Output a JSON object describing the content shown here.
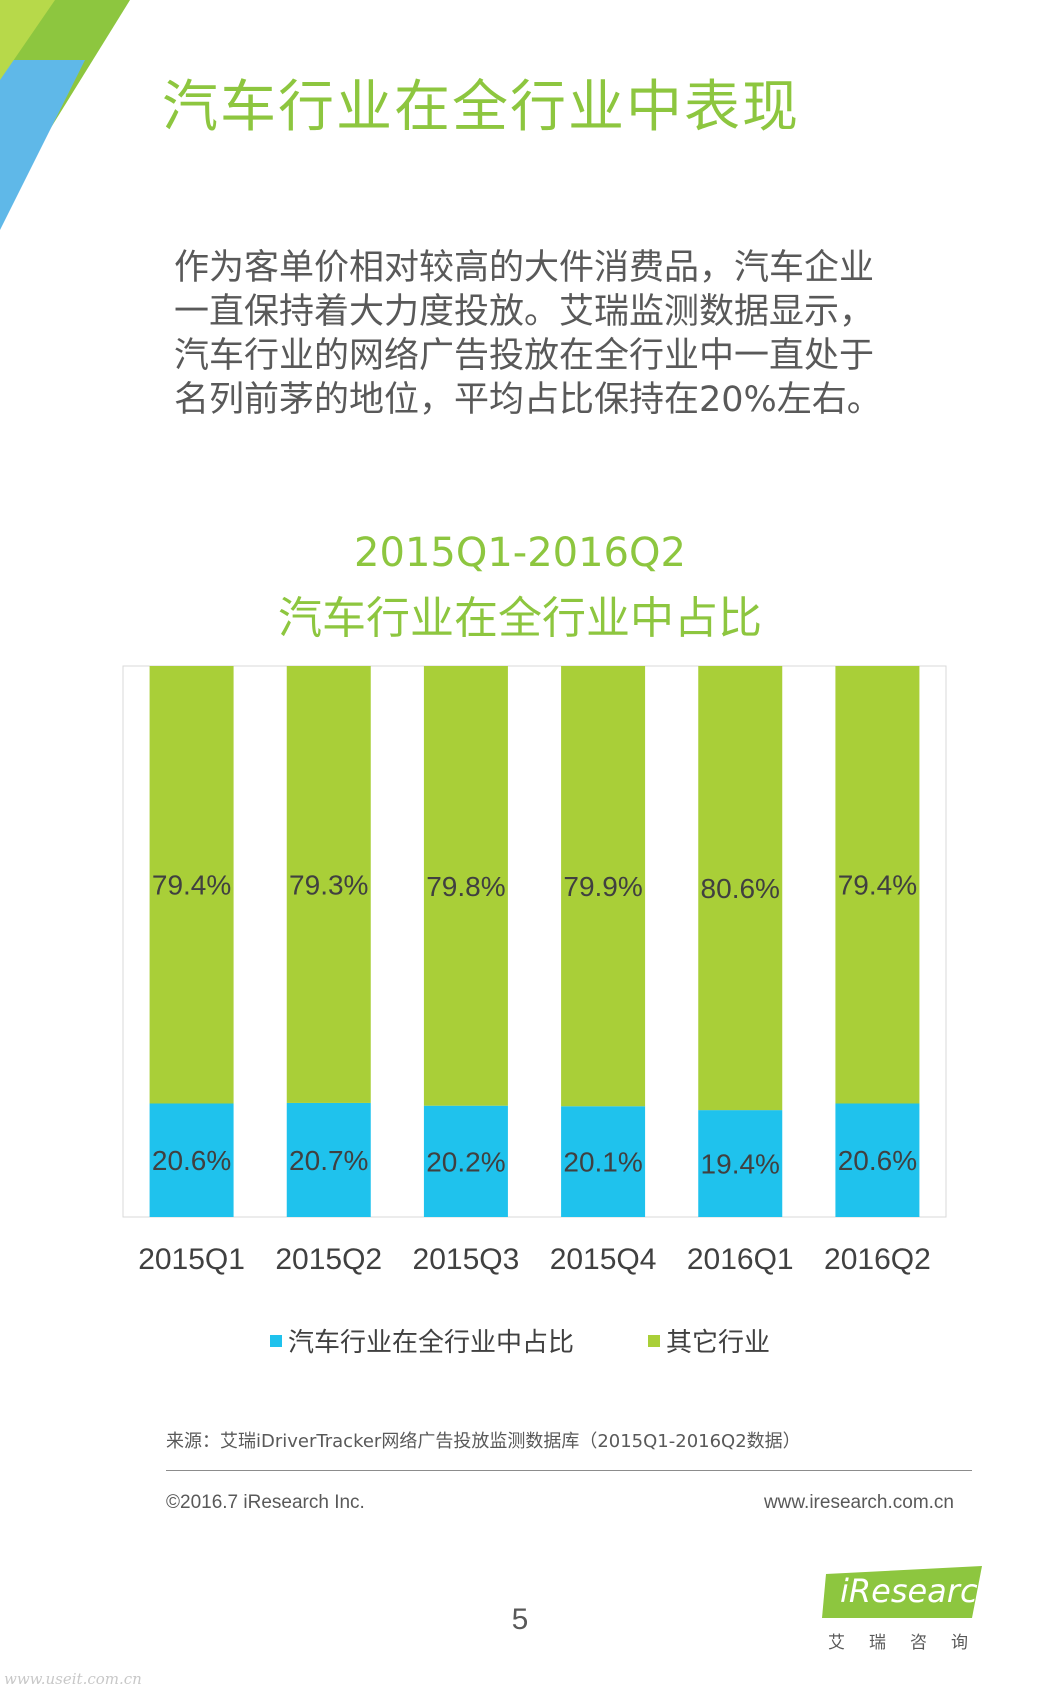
{
  "page": {
    "title": "汽车行业在全行业中表现",
    "intro": "作为客单价相对较高的大件消费品，汽车企业一直保持着大力度投放。艾瑞监测数据显示，汽车行业的网络广告投放在全行业中一直处于名列前茅的地位，平均占比保持在20%左右。",
    "page_number": "5",
    "source": "来源：艾瑞iDriverTracker网络广告投放监测数据库（2015Q1-2016Q2数据）",
    "copyright": "©2016.7 iResearch Inc.",
    "website": "www.iresearch.com.cn",
    "logo": {
      "text": "iResearch",
      "sub": "艾瑞咨询"
    },
    "watermark": "www.useit.com.cn"
  },
  "colors": {
    "accent": "#8dc63f",
    "auto": "#1fc2ed",
    "other": "#a9cf38",
    "text": "#595959"
  },
  "chart_data": {
    "type": "bar",
    "stacked": true,
    "title_line1": "2015Q1-2016Q2",
    "title_line2": "汽车行业在全行业中占比",
    "categories": [
      "2015Q1",
      "2015Q2",
      "2015Q3",
      "2015Q4",
      "2016Q1",
      "2016Q2"
    ],
    "series": [
      {
        "name": "汽车行业在全行业中占比",
        "color": "#1fc2ed",
        "values": [
          20.6,
          20.7,
          20.2,
          20.1,
          19.4,
          20.6
        ]
      },
      {
        "name": "其它行业",
        "color": "#a9cf38",
        "values": [
          79.4,
          79.3,
          79.8,
          79.9,
          80.6,
          79.4
        ]
      }
    ],
    "value_suffix": "%",
    "ylim": [
      0,
      100
    ],
    "legend_position": "bottom",
    "grid": false
  }
}
